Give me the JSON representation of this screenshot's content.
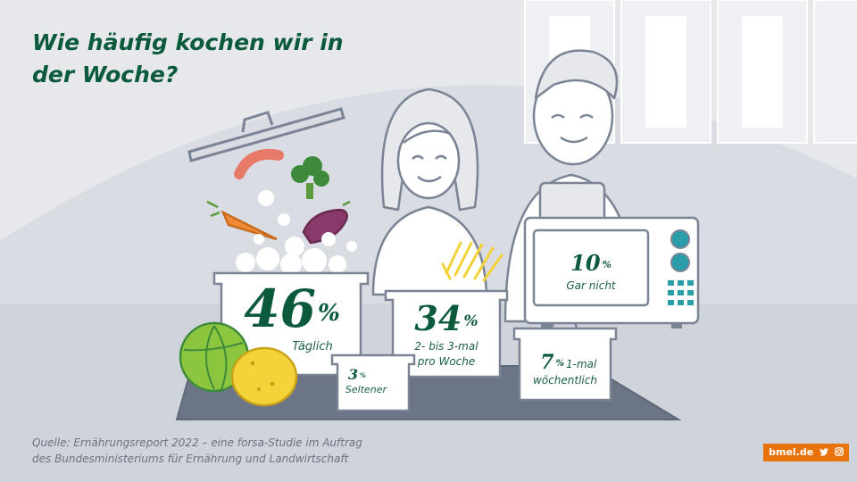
{
  "title": {
    "line1": "Wie häufig kochen wir in",
    "line2": "der Woche?"
  },
  "chart_data": {
    "type": "pictorial",
    "unit": "%",
    "categories": [
      "Täglich",
      "2- bis 3-mal pro Woche",
      "1-mal wöchentlich",
      "Seltener",
      "Gar nicht"
    ],
    "values": [
      46,
      34,
      7,
      3,
      10
    ]
  },
  "labels": {
    "daily": {
      "value": "46",
      "sign": "%",
      "text": "Täglich"
    },
    "twice": {
      "value": "34",
      "sign": "%",
      "line1": "2- bis 3-mal",
      "line2": "pro Woche"
    },
    "weekly": {
      "value": "7",
      "sign": "%",
      "line1": "1-mal",
      "line2": "wöchentlich"
    },
    "rarely": {
      "value": "3",
      "sign": "%",
      "text": "Seltener"
    },
    "never": {
      "value": "10",
      "sign": "%",
      "text": "Gar nicht"
    }
  },
  "source": {
    "line1": "Quelle: Ernährungsreport 2022 – eine forsa-Studie im Auftrag",
    "line2": "des Bundesministeriums für Ernährung und Landwirtschaft"
  },
  "brand": {
    "label": "bmel.de",
    "icons": [
      "twitter-icon",
      "instagram-icon"
    ]
  },
  "colors": {
    "title": "#0b5a3c",
    "accent": "#e8730a",
    "background": "#e6e8ec",
    "outline": "#7a8495",
    "counter": "#8f97a4"
  }
}
